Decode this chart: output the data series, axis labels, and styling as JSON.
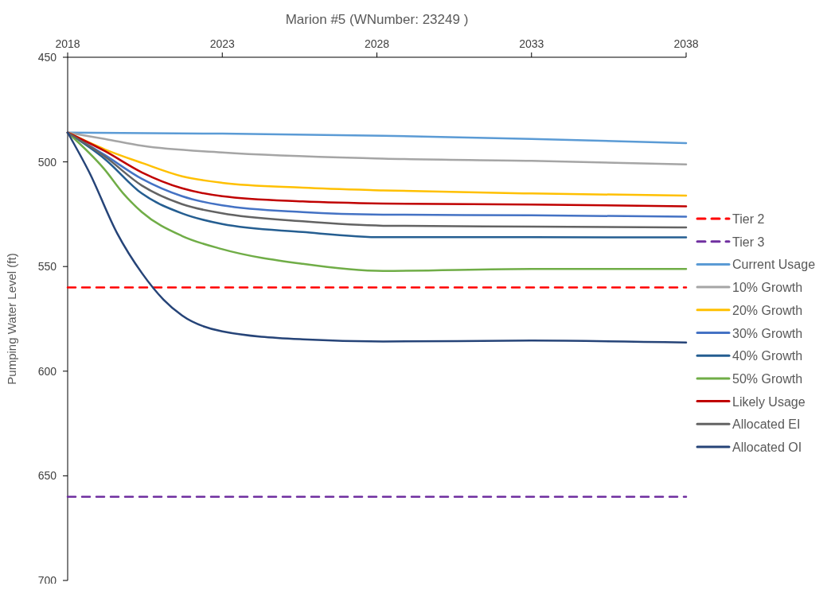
{
  "chart_data": {
    "type": "line",
    "title": "Marion #5 (WNumber: 23249 )",
    "ylabel": "Pumping Water Level (ft)",
    "xlim": [
      2018,
      2038
    ],
    "xticks": [
      2018,
      2023,
      2028,
      2033,
      2038
    ],
    "ylim": [
      700,
      450
    ],
    "yticks": [
      450,
      500,
      550,
      600,
      650,
      700
    ],
    "grid": false,
    "legend": "right",
    "marker": "none",
    "series": [
      {
        "name": "Tier 2",
        "color": "#ff0000",
        "line_style": "dashed",
        "x": [
          2018,
          2038
        ],
        "values": [
          560,
          560
        ]
      },
      {
        "name": "Tier 3",
        "color": "#7030a0",
        "line_style": "dashed",
        "x": [
          2018,
          2038
        ],
        "values": [
          660,
          660
        ]
      },
      {
        "name": "Current Usage",
        "color": "#5b9bd5",
        "x": [
          2018,
          2023,
          2028.2,
          2033,
          2038
        ],
        "values": [
          486,
          486.5,
          487.5,
          489,
          491
        ]
      },
      {
        "name": "10% Growth",
        "color": "#a5a5a5",
        "x": [
          2018,
          2019.2,
          2020.4,
          2023,
          2028.2,
          2033,
          2038
        ],
        "values": [
          486,
          489,
          492.3,
          495.5,
          498.4,
          499.5,
          501.2
        ]
      },
      {
        "name": "20% Growth",
        "color": "#ffc000",
        "x": [
          2018,
          2019.2,
          2020.4,
          2021.7,
          2023,
          2025.6,
          2028.2,
          2033,
          2038
        ],
        "values": [
          486,
          494,
          500.5,
          506.9,
          510,
          512.3,
          513.6,
          515.1,
          516.1
        ]
      },
      {
        "name": "30% Growth",
        "color": "#4472c4",
        "x": [
          2018,
          2019.2,
          2020.4,
          2021.7,
          2023,
          2025.6,
          2028.2,
          2033,
          2038
        ],
        "values": [
          486,
          496.7,
          508.1,
          516.4,
          520.8,
          524,
          525.2,
          525.5,
          526.2
        ]
      },
      {
        "name": "40% Growth",
        "color": "#255e91",
        "x": [
          2018,
          2019.2,
          2020.4,
          2021.7,
          2023,
          2025.6,
          2028.2,
          2033,
          2038
        ],
        "values": [
          486,
          498.6,
          515.1,
          524.6,
          529.7,
          533.5,
          536,
          536,
          536.1
        ]
      },
      {
        "name": "50% Growth",
        "color": "#70ad47",
        "x": [
          2018,
          2019.2,
          2019.8,
          2020.4,
          2021.7,
          2023,
          2025.6,
          2028.2,
          2033,
          2038
        ],
        "values": [
          486,
          503.7,
          515.1,
          524,
          535.4,
          541.7,
          548.7,
          552.1,
          551.2,
          551.2
        ]
      },
      {
        "name": "Likely Usage",
        "color": "#c00000",
        "x": [
          2018,
          2019.2,
          2020.4,
          2021.7,
          2023,
          2025.6,
          2028.2,
          2033,
          2038
        ],
        "values": [
          486,
          494.8,
          505,
          512.6,
          516.4,
          518.9,
          519.9,
          520.4,
          521.2
        ]
      },
      {
        "name": "Allocated EI",
        "color": "#636363",
        "x": [
          2018,
          2019.2,
          2020.4,
          2021.7,
          2023,
          2025.6,
          2028.2,
          2033,
          2038
        ],
        "values": [
          486,
          497.4,
          511.3,
          520.2,
          524.6,
          528.4,
          530.5,
          530.9,
          531.3
        ]
      },
      {
        "name": "Allocated OI",
        "color": "#264478",
        "x": [
          2018,
          2018.7,
          2019.6,
          2020.4,
          2021.1,
          2021.7,
          2023,
          2025.6,
          2028.2,
          2033,
          2038
        ],
        "values": [
          486,
          505,
          534.1,
          553.1,
          565.8,
          573.4,
          581,
          584.8,
          585.8,
          585.4,
          586.3
        ]
      }
    ]
  }
}
